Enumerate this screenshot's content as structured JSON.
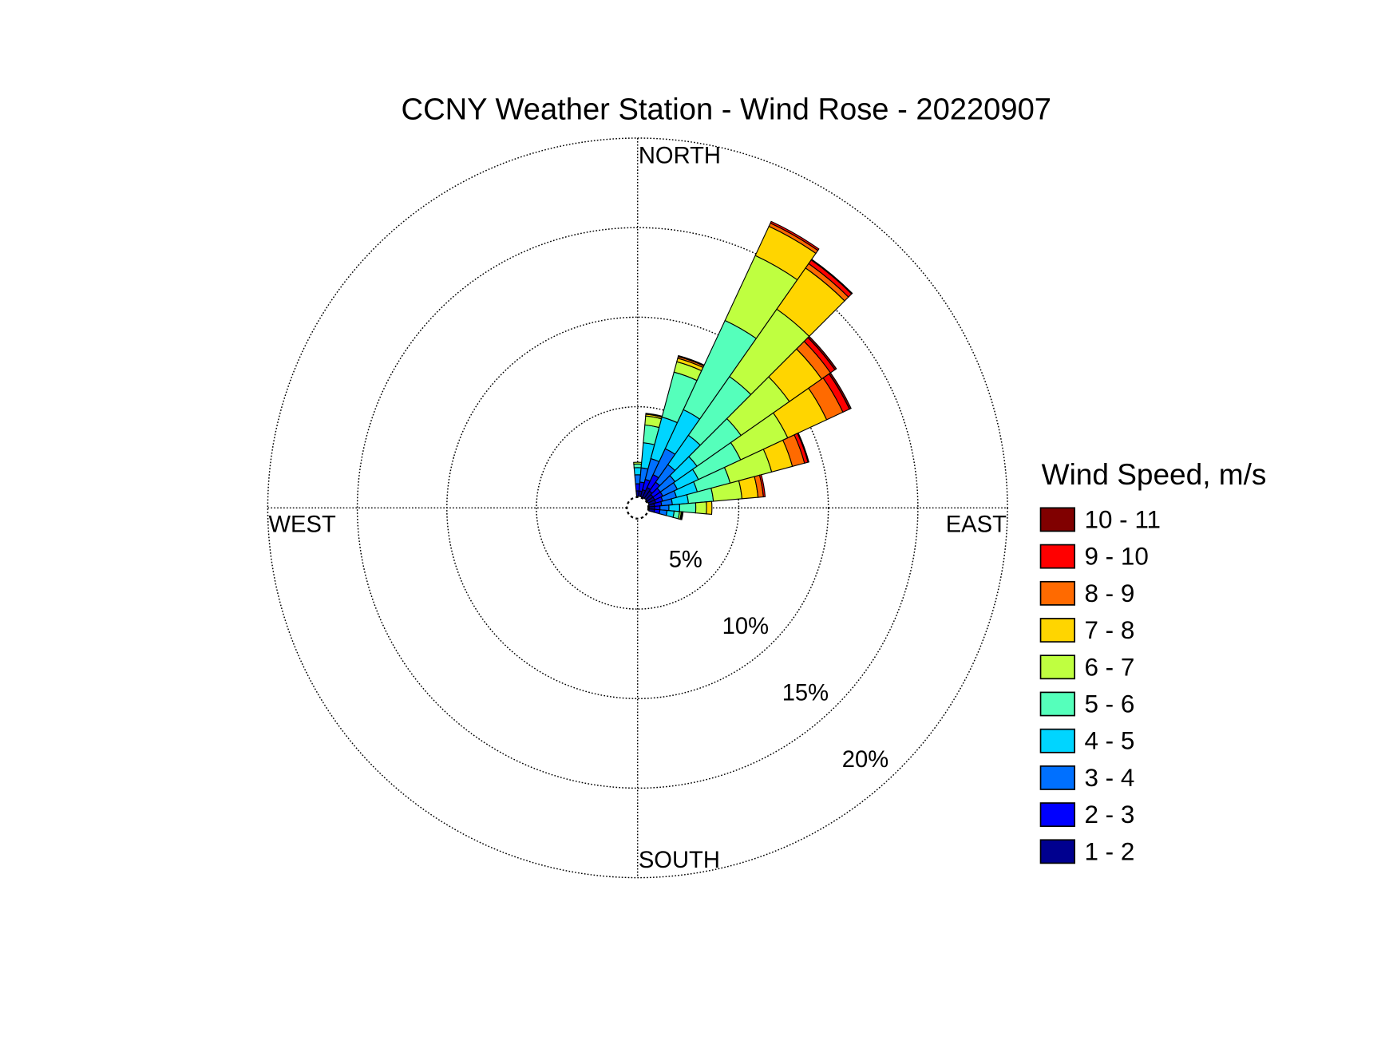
{
  "chart_data": {
    "type": "windrose",
    "title": "CCNY Weather Station - Wind Rose - 20220907",
    "legend_title": "Wind Speed, m/s",
    "direction_labels": [
      "NORTH",
      "EAST",
      "SOUTH",
      "WEST"
    ],
    "x": [
      0,
      10,
      20,
      30,
      40,
      50,
      60,
      70,
      80,
      90,
      100
    ],
    "ylim": [
      0,
      20
    ],
    "yticks": [
      {
        "value": 5,
        "label": "5%"
      },
      {
        "value": 10,
        "label": "10%"
      },
      {
        "value": 15,
        "label": "15%"
      },
      {
        "value": 20,
        "label": "20%"
      }
    ],
    "grid": true,
    "legend": "right",
    "series": [
      {
        "name": "10 - 11",
        "color": "#800000",
        "values": [
          0,
          0,
          0,
          0,
          0.05,
          0.1,
          0.1,
          0.05,
          0,
          0,
          0
        ]
      },
      {
        "name": "9 - 10",
        "color": "#ff0000",
        "values": [
          0,
          0,
          0.05,
          0.1,
          0.25,
          0.3,
          0.4,
          0.2,
          0.1,
          0,
          0
        ]
      },
      {
        "name": "8 - 9",
        "color": "#ff6a00",
        "values": [
          0,
          0.05,
          0.1,
          0.2,
          0.3,
          0.6,
          1.0,
          0.7,
          0.3,
          0,
          0.05
        ]
      },
      {
        "name": "7 - 8",
        "color": "#ffd500",
        "values": [
          0,
          0.1,
          0.2,
          1.8,
          2.8,
          2.2,
          2.4,
          1.2,
          0.9,
          0.3,
          0.05
        ]
      },
      {
        "name": "6 - 7",
        "color": "#bfff40",
        "values": [
          0.1,
          0.5,
          0.6,
          4.0,
          4.6,
          3.3,
          2.9,
          2.4,
          1.6,
          0.6,
          0.1
        ]
      },
      {
        "name": "5 - 6",
        "color": "#55ffbb",
        "values": [
          0.2,
          1.0,
          2.6,
          5.5,
          4.0,
          3.0,
          2.6,
          1.9,
          1.4,
          0.9,
          0.3
        ]
      },
      {
        "name": "4 - 5",
        "color": "#00d5ff",
        "values": [
          0.4,
          1.4,
          2.4,
          2.4,
          2.0,
          1.5,
          1.3,
          1.2,
          0.9,
          0.6,
          0.4
        ]
      },
      {
        "name": "3 - 4",
        "color": "#0070ff",
        "values": [
          0.5,
          0.8,
          1.2,
          1.6,
          1.2,
          1.0,
          0.9,
          0.8,
          0.6,
          0.5,
          0.4
        ]
      },
      {
        "name": "2 - 3",
        "color": "#0000ff",
        "values": [
          0.4,
          0.5,
          0.6,
          0.8,
          0.6,
          0.5,
          0.5,
          0.4,
          0.4,
          0.3,
          0.3
        ]
      },
      {
        "name": "1 - 2",
        "color": "#00008f",
        "values": [
          0.3,
          0.3,
          0.4,
          0.6,
          0.5,
          0.4,
          0.4,
          0.4,
          0.3,
          0.3,
          0.3
        ]
      }
    ]
  }
}
